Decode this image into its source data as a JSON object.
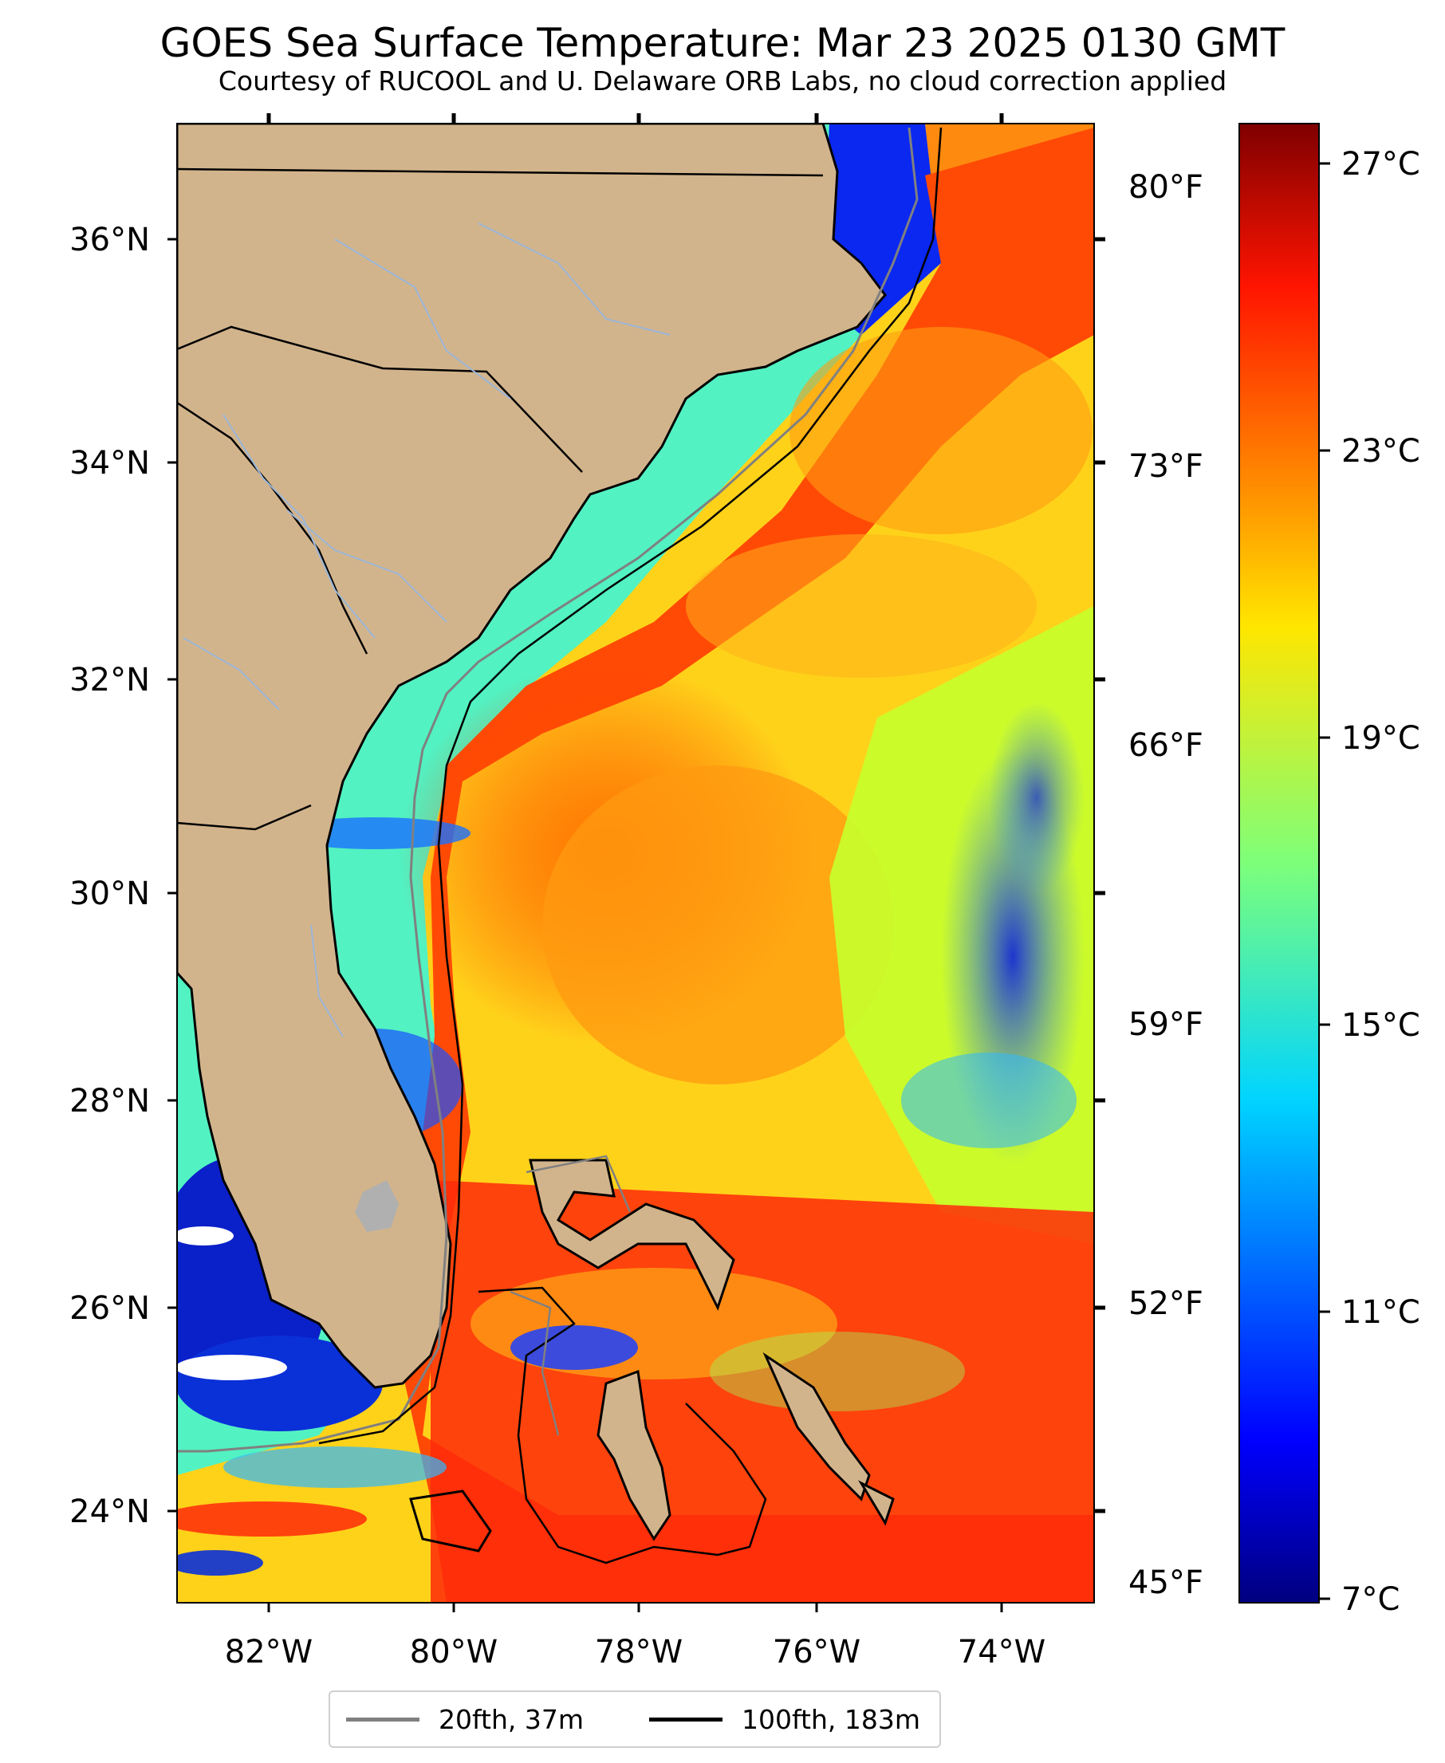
{
  "title": "GOES Sea Surface Temperature: Mar 23 2025 0130 GMT",
  "subtitle": "Courtesy of RUCOOL and U. Delaware ORB Labs, no cloud correction applied",
  "map": {
    "lon_range": [
      -83,
      -73
    ],
    "lat_range": [
      23.1,
      37.4
    ],
    "lon_ticks": [
      "82°W",
      "80°W",
      "78°W",
      "76°W",
      "74°W"
    ],
    "lat_ticks": [
      "36°N",
      "34°N",
      "32°N",
      "30°N",
      "28°N",
      "26°N",
      "24°N"
    ],
    "fahrenheit_ticks": [
      "80°F",
      "73°F",
      "66°F",
      "59°F",
      "52°F",
      "45°F"
    ],
    "land_color": "#d2b48c",
    "river_color": "#9bb6d8"
  },
  "colorbar": {
    "colormap": "jet",
    "range_c": [
      6.5,
      27.7
    ],
    "tick_labels": [
      "27°C",
      "23°C",
      "19°C",
      "15°C",
      "11°C",
      "7°C"
    ]
  },
  "legend": {
    "items": [
      {
        "label": "20fth, 37m",
        "color": "#808080"
      },
      {
        "label": "100fth, 183m",
        "color": "#000000"
      }
    ]
  }
}
